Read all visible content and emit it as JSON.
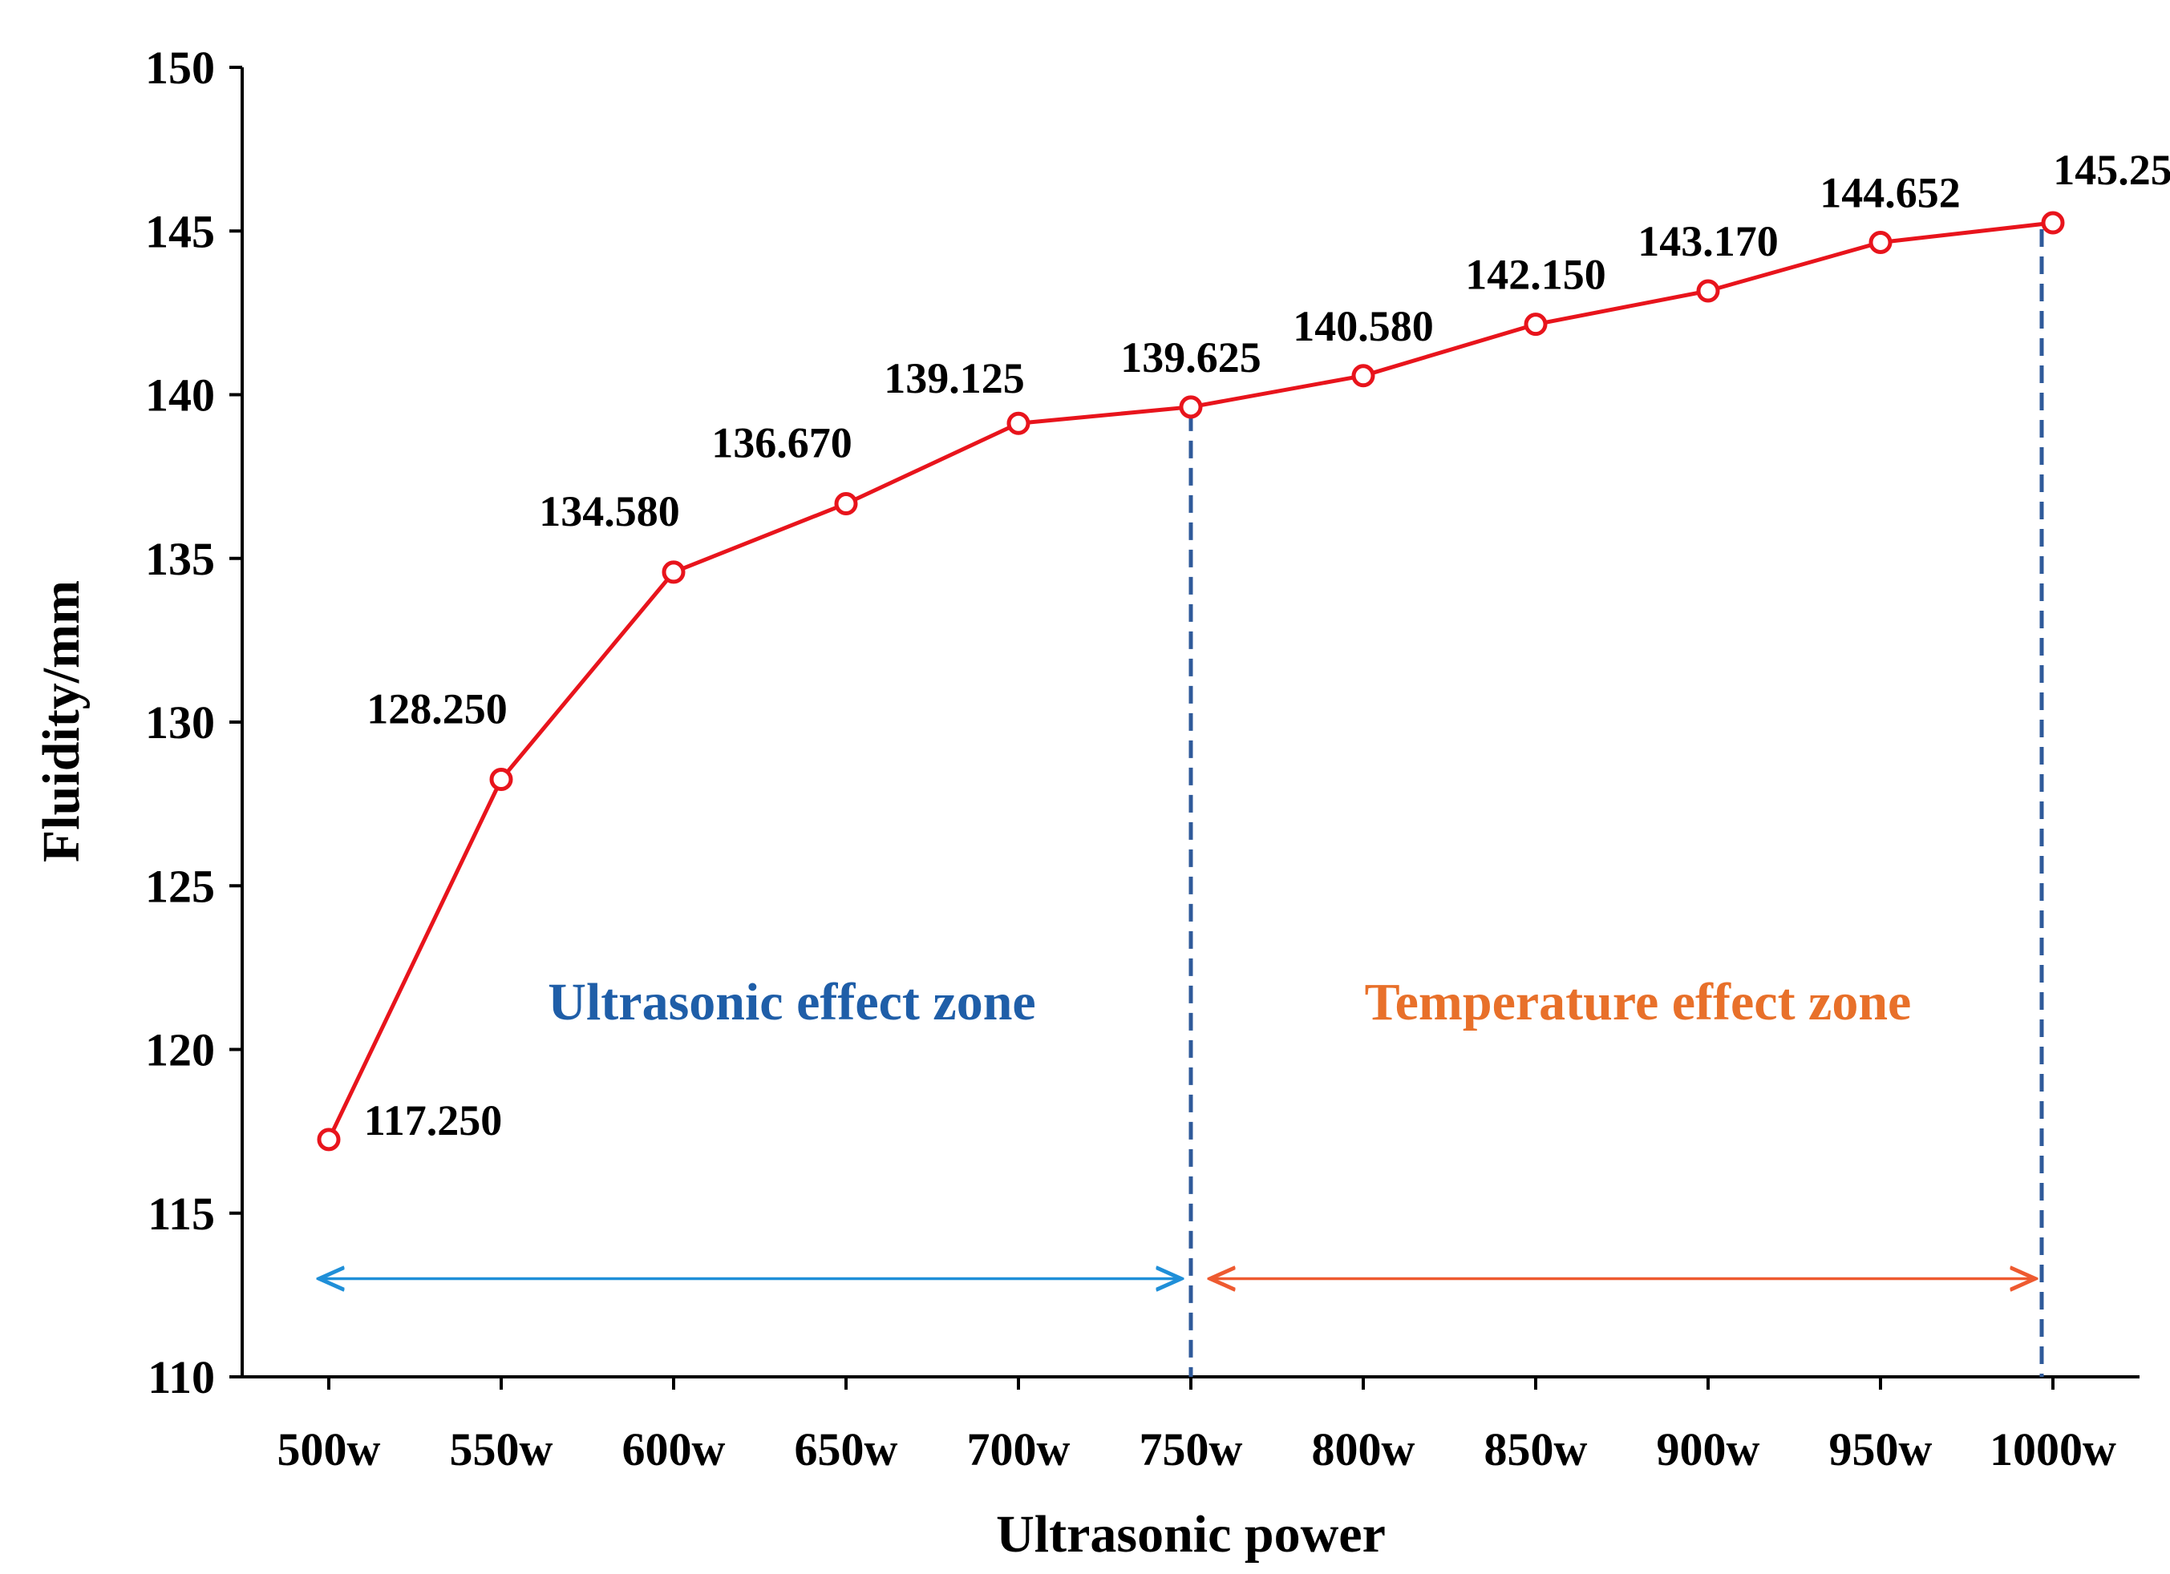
{
  "chart_data": {
    "type": "line",
    "categories": [
      "500w",
      "550w",
      "600w",
      "650w",
      "700w",
      "750w",
      "800w",
      "850w",
      "900w",
      "950w",
      "1000w"
    ],
    "series": [
      {
        "values": [
          117.25,
          128.25,
          134.58,
          136.67,
          139.125,
          139.625,
          140.58,
          142.15,
          143.17,
          144.652,
          145.25
        ],
        "labels": [
          "117.250",
          "128.250",
          "134.580",
          "136.670",
          "139.125",
          "139.625",
          "140.580",
          "142.150",
          "143.170",
          "144.652",
          "145.250"
        ],
        "color": "#e8141c"
      }
    ],
    "xlabel": "Ultrasonic power",
    "ylabel": "Fluidity/mm",
    "ylim": [
      110,
      150
    ],
    "yticks": [
      "110",
      "115",
      "120",
      "125",
      "130",
      "135",
      "140",
      "145",
      "150"
    ],
    "grid": false,
    "annotations": {
      "zones": [
        {
          "label": "Ultrasonic effect zone",
          "from": "500w",
          "to": "750w",
          "color": "#1f5ea8",
          "arrow_color": "#1f8fd8"
        },
        {
          "label": "Temperature effect zone",
          "from": "750w",
          "to": "1000w",
          "color": "#e8702a",
          "arrow_color": "#ee5a30"
        }
      ],
      "dashed_lines_at": [
        "750w",
        "1000w"
      ],
      "dashed_color": "#2f5a9a",
      "arrow_y": 113
    }
  }
}
